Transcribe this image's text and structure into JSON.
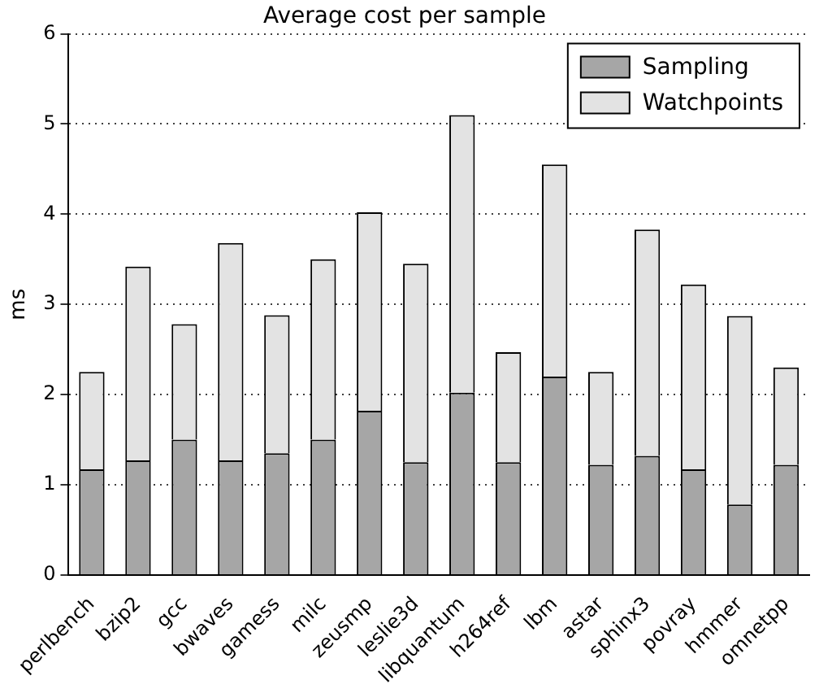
{
  "chart_data": {
    "type": "bar",
    "title": "Average cost per sample",
    "ylabel": "ms",
    "stacked": true,
    "categories": [
      "perlbench",
      "bzip2",
      "gcc",
      "bwaves",
      "gamess",
      "milc",
      "zeusmp",
      "leslie3d",
      "libquantum",
      "h264ref",
      "lbm",
      "astar",
      "sphinx3",
      "povray",
      "hmmer",
      "omnetpp"
    ],
    "series": [
      {
        "name": "Sampling",
        "color": "#a6a6a6",
        "values": [
          1.17,
          1.27,
          1.5,
          1.27,
          1.35,
          1.5,
          1.82,
          1.25,
          2.02,
          1.25,
          2.2,
          1.22,
          1.32,
          1.17,
          0.78,
          1.22
        ]
      },
      {
        "name": "Watchpoints",
        "color": "#e3e3e3",
        "values": [
          1.08,
          2.15,
          1.28,
          2.41,
          1.53,
          2.0,
          2.2,
          2.2,
          3.08,
          1.22,
          2.35,
          1.03,
          2.51,
          2.05,
          2.09,
          1.08
        ]
      }
    ],
    "ylim": [
      0,
      6
    ],
    "yticks": [
      0,
      1,
      2,
      3,
      4,
      5,
      6
    ],
    "grid": "y",
    "legend": "top right"
  }
}
